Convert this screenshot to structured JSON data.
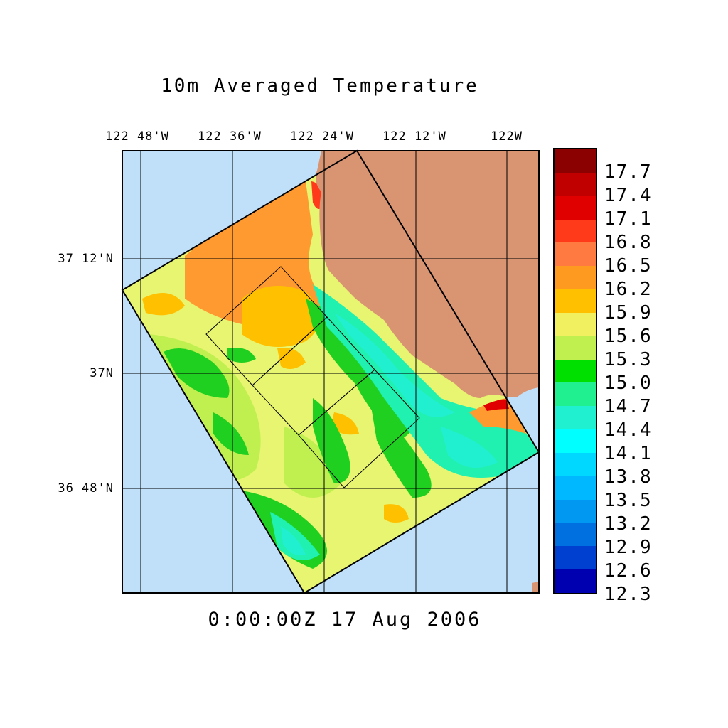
{
  "title": "10m Averaged Temperature",
  "timestamp": "0:00:00Z  17 Aug 2006",
  "longitude_labels": [
    "122 48'W",
    "122 36'W",
    "122 24'W",
    "122 12'W",
    "122W"
  ],
  "latitude_labels": [
    "37 12'N",
    "37N",
    "36 48'N"
  ],
  "colorbar": {
    "labels": [
      "17.7",
      "17.4",
      "17.1",
      "16.8",
      "16.5",
      "16.2",
      "15.9",
      "15.6",
      "15.3",
      "15.0",
      "14.7",
      "14.4",
      "14.1",
      "13.8",
      "13.5",
      "13.2",
      "12.9",
      "12.6",
      "12.3"
    ],
    "colors": [
      "#8b0000",
      "#c00000",
      "#e00000",
      "#ff3a1a",
      "#ff7a40",
      "#ff9a20",
      "#ffc000",
      "#f0f060",
      "#c0f050",
      "#00e000",
      "#20f090",
      "#20f0d0",
      "#00ffff",
      "#00d8ff",
      "#00b8ff",
      "#0098f0",
      "#0070e0",
      "#0040d0",
      "#0000b0"
    ]
  },
  "map_colors": {
    "ocean": "#c0e0fa",
    "land": "#d99472"
  }
}
